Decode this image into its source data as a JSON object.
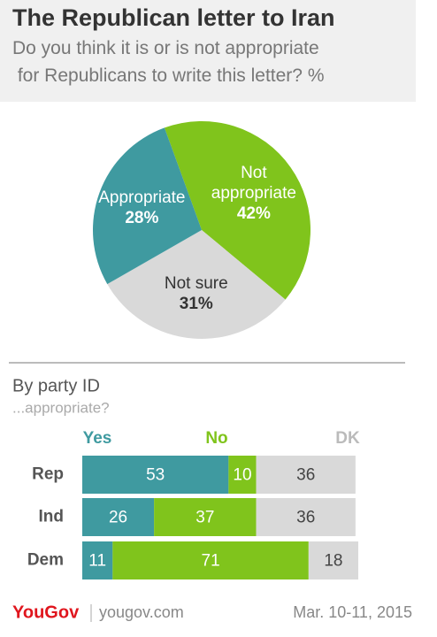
{
  "chart_data": [
    {
      "type": "pie",
      "title": "The Republican letter to Iran",
      "subtitle": "Do you think it is or is not appropriate for Republicans to write this letter? %",
      "categories": [
        "Not appropriate",
        "Not sure",
        "Appropriate"
      ],
      "values": [
        42,
        31,
        28
      ],
      "value_labels": [
        "42%",
        "31%",
        "28%"
      ],
      "colors": [
        "#80c41c",
        "#d9d9d9",
        "#3f9aa0"
      ]
    },
    {
      "type": "stacked-bar",
      "title": "By party ID",
      "subtitle": "...appropriate?",
      "categories": [
        "Rep",
        "Ind",
        "Dem"
      ],
      "series": [
        {
          "name": "Yes",
          "color": "#3f9aa0",
          "values": [
            53,
            26,
            11
          ]
        },
        {
          "name": "No",
          "color": "#80c41c",
          "values": [
            10,
            37,
            71
          ]
        },
        {
          "name": "DK",
          "color": "#d9d9d9",
          "values": [
            36,
            36,
            18
          ]
        }
      ],
      "xlim": [
        0,
        100
      ]
    }
  ],
  "footer": {
    "logo": "YouGov",
    "site": "yougov.com",
    "date": "Mar. 10-11, 2015"
  }
}
